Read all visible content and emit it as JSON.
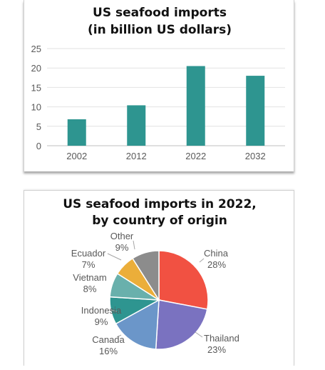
{
  "chart_data": [
    {
      "type": "bar",
      "title_lines": [
        "US seafood imports",
        "(in billion US dollars)"
      ],
      "categories": [
        "2002",
        "2012",
        "2022",
        "2032"
      ],
      "values": [
        6.8,
        10.4,
        20.5,
        18
      ],
      "ylim": [
        0,
        25
      ],
      "yticks": [
        "0",
        "5",
        "10",
        "15",
        "20",
        "25"
      ],
      "grid": true,
      "colors": {
        "bar": "#2e9590"
      }
    },
    {
      "type": "pie",
      "title_lines": [
        "US seafood imports in 2022,",
        "by country of origin"
      ],
      "slices": [
        {
          "name": "China",
          "value": 28,
          "label": "28%",
          "color": "#f15142"
        },
        {
          "name": "Thailand",
          "value": 23,
          "label": "23%",
          "color": "#7a72c0"
        },
        {
          "name": "Canada",
          "value": 16,
          "label": "16%",
          "color": "#6b96c9"
        },
        {
          "name": "Indonesia",
          "value": 9,
          "label": "9%",
          "color": "#2e9590"
        },
        {
          "name": "Vietnam",
          "value": 8,
          "label": "8%",
          "color": "#69b0ac"
        },
        {
          "name": "Ecuador",
          "value": 7,
          "label": "7%",
          "color": "#ebae3a"
        },
        {
          "name": "Other",
          "value": 9,
          "label": "9%",
          "color": "#8c8c8c"
        }
      ]
    }
  ]
}
